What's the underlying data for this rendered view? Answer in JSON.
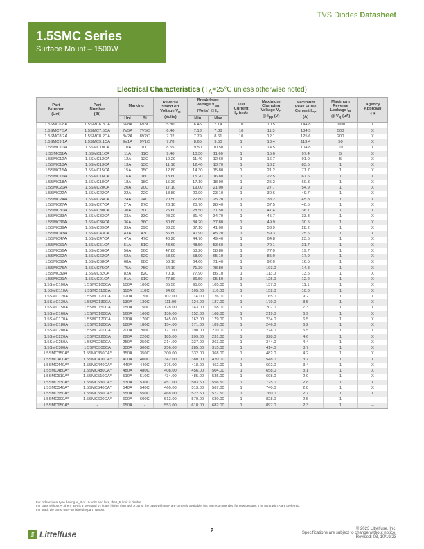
{
  "header": {
    "prefix": "TVS Diodes",
    "suffix": "Datasheet"
  },
  "title": {
    "series": "1.5SMC Series",
    "subtitle": "Surface Mount – 1500W"
  },
  "tableTitle": {
    "main": "Electrical Characteristics",
    "note": " (T",
    "sub": "A",
    "rest": "=25°C unless otherwise noted)"
  },
  "columns": [
    "Part Number (Uni)",
    "Part Number (Bi)",
    "Marking Uni",
    "Marking Bi",
    "Reverse Stand off Voltage V_R (Volts)",
    "Breakdown Voltage V_BR (Volts) @ I_T Min",
    "Breakdown Voltage V_BR (Volts) @ I_T Max",
    "Test Current I_T (mA)",
    "Maximum Clamping Voltage V_C @ I_PP (V)",
    "Maximum Peak Pulse Current I_PP (A)",
    "Maximum Reverse Leakage I_R @ V_R (µA)",
    "Agency Approval"
  ],
  "rows": [
    [
      "1.5SMC6.8A",
      "1.5SMC6.8CA",
      "6V8A",
      "6V8C",
      "5.80",
      "6.45",
      "7.14",
      "10",
      "10.5",
      "144.8",
      "1000",
      "X"
    ],
    [
      "1.5SMC7.5A",
      "1.5SMC7.5CA",
      "7V5A",
      "7V5C",
      "6.40",
      "7.13",
      "7.88",
      "10",
      "11.3",
      "134.5",
      "500",
      "X"
    ],
    [
      "1.5SMC8.2A",
      "1.5SMC8.2CA",
      "8V2A",
      "8V2C",
      "7.02",
      "7.79",
      "8.61",
      "10",
      "12.1",
      "125.6",
      "200",
      "X"
    ],
    [
      "1.5SMC9.1A",
      "1.5SMC9.1CA",
      "9V1A",
      "9V1C",
      "7.78",
      "8.65",
      "9.50",
      "1",
      "13.4",
      "113.4",
      "50",
      "X"
    ],
    [
      "1.5SMC10A",
      "1.5SMC10CA",
      "10A",
      "10C",
      "8.55",
      "9.50",
      "10.50",
      "1",
      "14.5",
      "104.8",
      "10",
      "X"
    ],
    [
      "1.5SMC11A",
      "1.5SMC11CA",
      "11A",
      "11C",
      "9.40",
      "10.50",
      "11.60",
      "1",
      "15.6",
      "97.4",
      "5",
      "X"
    ],
    [
      "1.5SMC12A",
      "1.5SMC12CA",
      "12A",
      "12C",
      "10.20",
      "11.40",
      "12.60",
      "1",
      "16.7",
      "91.0",
      "5",
      "X"
    ],
    [
      "1.5SMC13A",
      "1.5SMC13CA",
      "13A",
      "13C",
      "11.10",
      "12.40",
      "13.70",
      "1",
      "18.2",
      "83.5",
      "1",
      "X"
    ],
    [
      "1.5SMC15A",
      "1.5SMC15CA",
      "15A",
      "15C",
      "12.80",
      "14.30",
      "15.80",
      "1",
      "21.2",
      "71.7",
      "1",
      "X"
    ],
    [
      "1.5SMC16A",
      "1.5SMC16CA",
      "16A",
      "16C",
      "13.60",
      "15.20",
      "16.80",
      "1",
      "22.5",
      "67.6",
      "1",
      "X"
    ],
    [
      "1.5SMC18A",
      "1.5SMC18CA",
      "18A",
      "18C",
      "15.30",
      "17.10",
      "18.90",
      "1",
      "25.2",
      "60.3",
      "1",
      "X"
    ],
    [
      "1.5SMC20A",
      "1.5SMC20CA",
      "20A",
      "20C",
      "17.10",
      "19.00",
      "21.00",
      "1",
      "27.7",
      "54.9",
      "1",
      "X"
    ],
    [
      "1.5SMC22A",
      "1.5SMC22CA",
      "22A",
      "22C",
      "18.80",
      "20.90",
      "23.10",
      "1",
      "30.6",
      "49.7",
      "1",
      "X"
    ],
    [
      "1.5SMC24A",
      "1.5SMC24CA",
      "24A",
      "24C",
      "20.50",
      "22.80",
      "25.20",
      "1",
      "33.2",
      "45.8",
      "1",
      "X"
    ],
    [
      "1.5SMC27A",
      "1.5SMC27CA",
      "27A",
      "27C",
      "23.10",
      "25.70",
      "28.40",
      "1",
      "37.5",
      "40.5",
      "1",
      "X"
    ],
    [
      "1.5SMC30A",
      "1.5SMC30CA",
      "30A",
      "30C",
      "25.60",
      "28.50",
      "31.50",
      "1",
      "41.4",
      "36.7",
      "1",
      "X"
    ],
    [
      "1.5SMC33A",
      "1.5SMC33CA",
      "33A",
      "33C",
      "28.20",
      "31.40",
      "34.70",
      "1",
      "45.7",
      "33.3",
      "1",
      "X"
    ],
    [
      "1.5SMC36A",
      "1.5SMC36CA",
      "36A",
      "36C",
      "30.80",
      "34.20",
      "37.80",
      "1",
      "49.9",
      "30.5",
      "1",
      "X"
    ],
    [
      "1.5SMC39A",
      "1.5SMC39CA",
      "39A",
      "39C",
      "33.30",
      "37.10",
      "41.00",
      "1",
      "53.9",
      "28.2",
      "1",
      "X"
    ],
    [
      "1.5SMC43A",
      "1.5SMC43CA",
      "43A",
      "43C",
      "36.80",
      "40.90",
      "45.20",
      "1",
      "59.3",
      "25.6",
      "1",
      "X"
    ],
    [
      "1.5SMC47A",
      "1.5SMC47CA",
      "47A",
      "47C",
      "40.20",
      "44.70",
      "49.40",
      "1",
      "64.8",
      "23.5",
      "1",
      "X"
    ],
    [
      "1.5SMC51A",
      "1.5SMC51CA",
      "51A",
      "51C",
      "43.60",
      "48.50",
      "53.60",
      "1",
      "70.1",
      "21.7",
      "1",
      "X"
    ],
    [
      "1.5SMC56A",
      "1.5SMC56CA",
      "56A",
      "56C",
      "47.80",
      "53.20",
      "58.80",
      "1",
      "77.0",
      "19.7",
      "1",
      "X"
    ],
    [
      "1.5SMC62A",
      "1.5SMC62CA",
      "62A",
      "62C",
      "53.00",
      "58.90",
      "65.10",
      "1",
      "85.0",
      "17.9",
      "1",
      "X"
    ],
    [
      "1.5SMC68A",
      "1.5SMC68CA",
      "68A",
      "68C",
      "58.10",
      "64.60",
      "71.40",
      "1",
      "92.0",
      "16.5",
      "1",
      "X"
    ],
    [
      "1.5SMC75A",
      "1.5SMC75CA",
      "75A",
      "75C",
      "64.10",
      "71.30",
      "78.80",
      "1",
      "103.0",
      "14.8",
      "1",
      "X"
    ],
    [
      "1.5SMC82A",
      "1.5SMC82CA",
      "82A",
      "82C",
      "70.10",
      "77.90",
      "86.10",
      "1",
      "113.0",
      "13.5",
      "1",
      "X"
    ],
    [
      "1.5SMC91A",
      "1.5SMC91CA",
      "91A",
      "91C",
      "77.80",
      "86.50",
      "95.50",
      "1",
      "125.0",
      "12.2",
      "1",
      "X"
    ],
    [
      "1.5SMC100A",
      "1.5SMC100CA",
      "100A",
      "100C",
      "85.50",
      "95.00",
      "105.00",
      "1",
      "137.0",
      "11.1",
      "1",
      "X"
    ],
    [
      "1.5SMC110A",
      "1.5SMC110CA",
      "110A",
      "110C",
      "94.00",
      "105.00",
      "116.00",
      "1",
      "152.0",
      "10.0",
      "1",
      "X"
    ],
    [
      "1.5SMC120A",
      "1.5SMC120CA",
      "120A",
      "120C",
      "102.00",
      "114.00",
      "126.00",
      "1",
      "165.0",
      "9.2",
      "1",
      "X"
    ],
    [
      "1.5SMC130A",
      "1.5SMC130CA",
      "130A",
      "130C",
      "111.00",
      "124.00",
      "137.00",
      "1",
      "179.0",
      "8.5",
      "1",
      "X"
    ],
    [
      "1.5SMC150A",
      "1.5SMC150CA",
      "150A",
      "150C",
      "128.00",
      "143.00",
      "158.00",
      "1",
      "207.0",
      "7.3",
      "1",
      "X"
    ],
    [
      "1.5SMC160A",
      "1.5SMC160CA",
      "160A",
      "160C",
      "136.00",
      "152.00",
      "168.00",
      "1",
      "219.0",
      "6.9",
      "1",
      "X"
    ],
    [
      "1.5SMC170A",
      "1.5SMC170CA",
      "170A",
      "170C",
      "145.00",
      "162.00",
      "179.00",
      "1",
      "234.0",
      "6.5",
      "1",
      "X"
    ],
    [
      "1.5SMC180A",
      "1.5SMC180CA",
      "180A",
      "180C",
      "154.00",
      "171.00",
      "189.00",
      "1",
      "246.0",
      "6.2",
      "1",
      "X"
    ],
    [
      "1.5SMC200A",
      "1.5SMC200CA",
      "200A",
      "200C",
      "171.00",
      "190.00",
      "210.00",
      "1",
      "274.0",
      "5.5",
      "1",
      "X"
    ],
    [
      "1.5SMC220A",
      "1.5SMC220CA",
      "220A",
      "220C",
      "185.00",
      "209.00",
      "231.00",
      "1",
      "328.0",
      "4.6",
      "1",
      "X"
    ],
    [
      "1.5SMC250A",
      "1.5SMC250CA",
      "250A",
      "250C",
      "214.00",
      "237.00",
      "263.00",
      "1",
      "344.0",
      "4.4",
      "1",
      "X"
    ],
    [
      "1.5SMC300A",
      "1.5SMC300CA",
      "300A",
      "300C",
      "256.00",
      "285.00",
      "315.00",
      "1",
      "414.0",
      "3.7",
      "1",
      "X"
    ],
    [
      "1.5SMC350A*",
      "1.5SMC350CA*",
      "350A",
      "350C",
      "300.00",
      "332.00",
      "368.00",
      "1",
      "482.0",
      "4.2",
      "1",
      "X"
    ],
    [
      "1.5SMC400A*",
      "1.5SMC400CA*",
      "400A",
      "400C",
      "342.00",
      "380.00",
      "420.00",
      "1",
      "548.0",
      "3.7",
      "1",
      "X"
    ],
    [
      "1.5SMC440A*",
      "1.5SMC440CA*",
      "440A",
      "440C",
      "376.00",
      "418.00",
      "462.00",
      "1",
      "602.0",
      "3.4",
      "1",
      "X"
    ],
    [
      "1.5SMC480A*",
      "1.5SMC480CA*",
      "480A",
      "480C",
      "408.00",
      "456.00",
      "504.00",
      "1",
      "658.0",
      "3.1",
      "1",
      "X"
    ],
    [
      "1.5SMC510A*",
      "1.5SMC510CA*",
      "510A",
      "510C",
      "434.00",
      "485.00",
      "535.00",
      "1",
      "698.0",
      "2.9",
      "1",
      "X"
    ],
    [
      "1.5SMC530A*",
      "1.5SMC530CA*",
      "530A",
      "530C",
      "451.00",
      "503.50",
      "556.50",
      "1",
      "725.0",
      "2.8",
      "1",
      "X"
    ],
    [
      "1.5SMC540A*",
      "1.5SMC540CA*",
      "540A",
      "540C",
      "460.00",
      "513.00",
      "567.00",
      "1",
      "740.0",
      "2.8",
      "1",
      "X"
    ],
    [
      "1.5SMC550A*",
      "1.5SMC550CA*",
      "550A",
      "550C",
      "468.00",
      "522.50",
      "577.50",
      "1",
      "760.0",
      "2.7",
      "1",
      "X"
    ],
    [
      "1.5SMC600A*",
      "1.5SMC600CA*",
      "600A",
      "600C",
      "512.00",
      "570.00",
      "630.00",
      "1",
      "828.0",
      "2.5",
      "1",
      "–"
    ],
    [
      "1.5SMC650A*",
      "-",
      "650A",
      "-",
      "553.00",
      "618.00",
      "682.00",
      "1",
      "897.0",
      "2.3",
      "1",
      "–"
    ]
  ],
  "footnotes": [
    "For bidirectional type having V_R of 10 volts and less, the I_R limit is double.",
    "For parts without A , the V_BR is ± 10% and Vc is 5% higher than with A parts, the parts without A are currently available, but not recommended for new designs. The parts with A are preferred.",
    "For stack die parts, use * to label the part number."
  ],
  "footer": {
    "logoText": "Littelfuse",
    "page": "2",
    "copyright": "© 2023 Littelfuse, Inc.",
    "spec": "Specifications are subject to change without notice.",
    "rev": "Revised: 03, 10/19/23"
  }
}
